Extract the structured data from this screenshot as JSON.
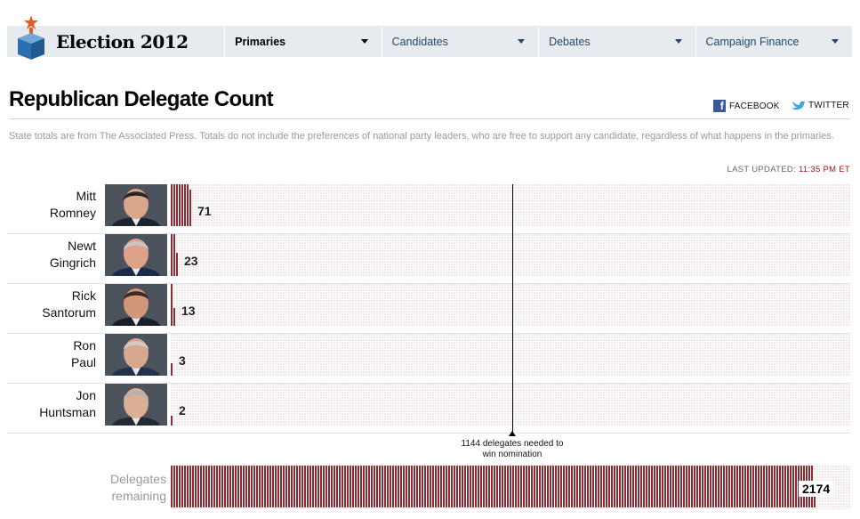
{
  "nav": {
    "brand": "Election 2012",
    "items": [
      {
        "label": "Primaries",
        "active": true
      },
      {
        "label": "Candidates",
        "active": false
      },
      {
        "label": "Debates",
        "active": false
      },
      {
        "label": "Campaign Finance",
        "active": false
      }
    ]
  },
  "header": {
    "title": "Republican Delegate Count",
    "facebook": "FACEBOOK",
    "twitter": "TWITTER"
  },
  "intro": "State totals are from The Associated Press. Totals do not include the preferences of national party leaders, who are free to support any candidate, regardless of what happens in the primaries.",
  "updated": {
    "label": "LAST UPDATED:",
    "time": "11:35 PM ET"
  },
  "colors": {
    "filled": "#8e2a31",
    "empty": "#f1e6e7",
    "accent": "#a0171e"
  },
  "total_delegates": 2286,
  "candidates": [
    {
      "first": "Mitt",
      "last": "Romney",
      "delegates": "71",
      "photo_icon": "romney-photo"
    },
    {
      "first": "Newt",
      "last": "Gingrich",
      "delegates": "23",
      "photo_icon": "gingrich-photo"
    },
    {
      "first": "Rick",
      "last": "Santorum",
      "delegates": "13",
      "photo_icon": "santorum-photo"
    },
    {
      "first": "Ron",
      "last": "Paul",
      "delegates": "3",
      "photo_icon": "paul-photo"
    },
    {
      "first": "Jon",
      "last": "Huntsman",
      "delegates": "2",
      "photo_icon": "huntsman-photo"
    }
  ],
  "needed": {
    "line1": "1144 delegates needed to",
    "line2": "win nomination",
    "value": 1144
  },
  "remaining": {
    "line1": "Delegates",
    "line2": "remaining",
    "value": "2174"
  }
}
